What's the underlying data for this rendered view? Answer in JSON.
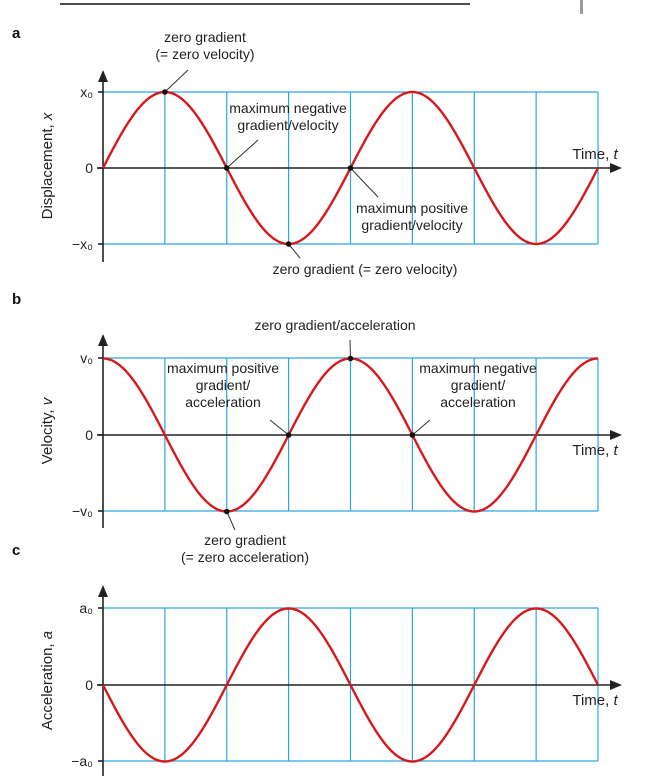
{
  "chart_data": [
    {
      "type": "line",
      "panel_label": "a",
      "function": "sin",
      "periods": 2,
      "ylabel_text": "Displacement, ",
      "ylabel_symbol": "x",
      "xlabel_text": "Time, ",
      "xlabel_symbol": "t",
      "ytick_top": "x₀",
      "ytick_zero": "0",
      "ytick_bottom": "−x₀",
      "vertical_gridlines": 8,
      "grid": true,
      "annotations": [
        {
          "lines": [
            "zero gradient",
            "(= zero velocity)"
          ],
          "point_phase": 0.25,
          "anchor": "above"
        },
        {
          "lines": [
            "maximum negative",
            "gradient/velocity"
          ],
          "point_phase": 0.5,
          "anchor": "upper-right"
        },
        {
          "lines": [
            "maximum positive",
            "gradient/velocity"
          ],
          "point_phase": 1.0,
          "anchor": "lower-right"
        },
        {
          "lines": [
            "zero gradient (= zero velocity)"
          ],
          "point_phase": 0.75,
          "anchor": "below"
        }
      ]
    },
    {
      "type": "line",
      "panel_label": "b",
      "function": "cos",
      "periods": 2,
      "ylabel_text": "Velocity, ",
      "ylabel_symbol": "v",
      "xlabel_text": "Time, ",
      "xlabel_symbol": "t",
      "ytick_top": "v₀",
      "ytick_zero": "0",
      "ytick_bottom": "−v₀",
      "vertical_gridlines": 8,
      "grid": true,
      "annotations": [
        {
          "lines": [
            "zero gradient/acceleration"
          ],
          "point_phase": 1.0,
          "anchor": "above"
        },
        {
          "lines": [
            "maximum positive",
            "gradient/",
            "acceleration"
          ],
          "point_phase": 0.75,
          "anchor": "upper-left"
        },
        {
          "lines": [
            "maximum negative",
            "gradient/",
            "acceleration"
          ],
          "point_phase": 1.25,
          "anchor": "upper-right"
        },
        {
          "lines": [
            "zero gradient",
            "(= zero acceleration)"
          ],
          "point_phase": 0.5,
          "anchor": "below"
        }
      ]
    },
    {
      "type": "line",
      "panel_label": "c",
      "function": "-sin",
      "periods": 2,
      "ylabel_text": "Acceleration, ",
      "ylabel_symbol": "a",
      "xlabel_text": "Time, ",
      "xlabel_symbol": "t",
      "ytick_top": "a₀",
      "ytick_zero": "0",
      "ytick_bottom": "−a₀",
      "vertical_gridlines": 8,
      "grid": true,
      "annotations": []
    }
  ]
}
